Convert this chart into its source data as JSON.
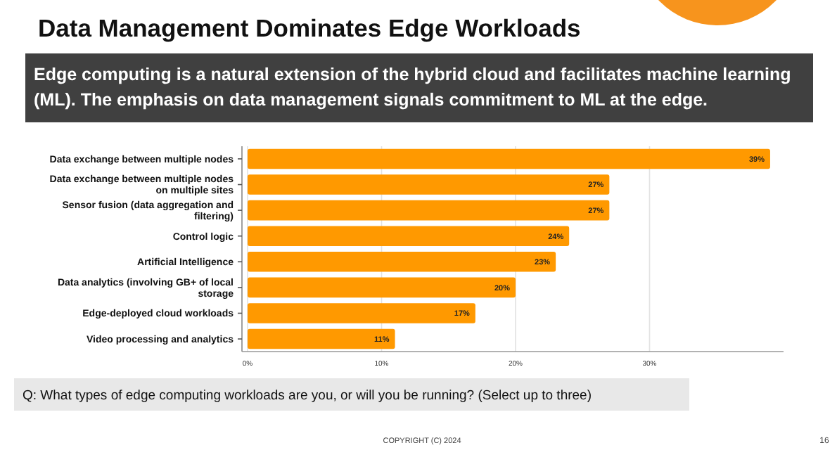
{
  "chart_data": {
    "type": "bar",
    "orientation": "horizontal",
    "title": "Data Management Dominates Edge Workloads",
    "subtitle": "Edge computing is a natural extension of the hybrid cloud and facilitates machine learning (ML). The emphasis on data management signals commitment to ML at the edge.",
    "categories": [
      "Data exchange between multiple nodes",
      "Data exchange between multiple nodes on multiple sites",
      "Sensor fusion (data aggregation and filtering)",
      "Control logic",
      "Artificial Intelligence",
      "Data analytics (involving GB+ of local storage",
      "Edge-deployed cloud workloads",
      "Video processing and analytics"
    ],
    "values": [
      39,
      27,
      27,
      24,
      23,
      20,
      17,
      11
    ],
    "value_labels": [
      "39%",
      "27%",
      "27%",
      "24%",
      "23%",
      "20%",
      "17%",
      "11%"
    ],
    "color": "#ff9900",
    "xlim": [
      0,
      40
    ],
    "xticks": [
      {
        "value": 0,
        "label": "0%"
      },
      {
        "value": 10,
        "label": "10%"
      },
      {
        "value": 20,
        "label": "20%"
      },
      {
        "value": 30,
        "label": "30%"
      }
    ],
    "grid": "x",
    "annotations": [
      "Q: What types of edge computing workloads are you, or will you be running? (Select up to three)",
      "COPYRIGHT (C) 2024",
      "16"
    ]
  }
}
